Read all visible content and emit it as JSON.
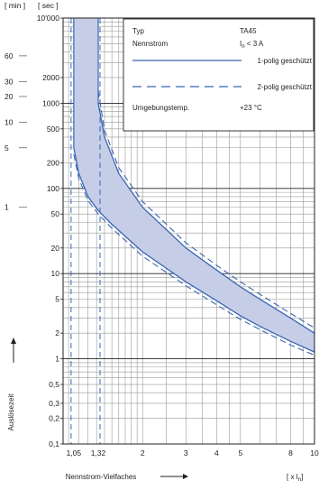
{
  "chart_data": {
    "type": "line",
    "x_scale": "log",
    "y_scale": "log",
    "xlim": [
      0.95,
      10
    ],
    "ylim": [
      0.1,
      10000
    ],
    "y_unit_min_label": "[ min ]",
    "y_unit_sec_label": "[ sec ]",
    "ylabel": "Auslösezeit",
    "xlabel": "Nennstrom-Vielfaches",
    "x_unit_label": "[ x I",
    "x_unit_sub": "n",
    "x_unit_close": "]",
    "x_ticks": [
      {
        "v": 1.05,
        "label": "1,05"
      },
      {
        "v": 1.32,
        "label": "1,32"
      },
      {
        "v": 2,
        "label": "2"
      },
      {
        "v": 3,
        "label": "3"
      },
      {
        "v": 4,
        "label": "4"
      },
      {
        "v": 5,
        "label": "5"
      },
      {
        "v": 8,
        "label": "8"
      },
      {
        "v": 10,
        "label": "10"
      }
    ],
    "y_sec_ticks": [
      {
        "v": 10000,
        "label": "10'000"
      },
      {
        "v": 2000,
        "label": "2000"
      },
      {
        "v": 1000,
        "label": "1000"
      },
      {
        "v": 500,
        "label": "500"
      },
      {
        "v": 200,
        "label": "200"
      },
      {
        "v": 100,
        "label": "100"
      },
      {
        "v": 50,
        "label": "50"
      },
      {
        "v": 20,
        "label": "20"
      },
      {
        "v": 10,
        "label": "10"
      },
      {
        "v": 5,
        "label": "5"
      },
      {
        "v": 2,
        "label": "2"
      },
      {
        "v": 1,
        "label": "1"
      },
      {
        "v": 0.5,
        "label": "0,5"
      },
      {
        "v": 0.3,
        "label": "0,3"
      },
      {
        "v": 0.2,
        "label": "0,2"
      },
      {
        "v": 0.1,
        "label": "0,1"
      }
    ],
    "y_min_ticks": [
      {
        "v": 3600,
        "label": "60"
      },
      {
        "v": 1800,
        "label": "30"
      },
      {
        "v": 1200,
        "label": "20"
      },
      {
        "v": 600,
        "label": "10"
      },
      {
        "v": 300,
        "label": "5"
      },
      {
        "v": 60,
        "label": "1"
      }
    ],
    "legend": {
      "placement": "top-right",
      "rows": [
        {
          "key": "Typ",
          "value": "TA45"
        },
        {
          "key": "Nennstrom",
          "value_prefix": "I",
          "value_sub": "n",
          "value_suffix": " < 3 A"
        },
        {
          "line": "solid",
          "value": "1-polig geschützt"
        },
        {
          "line": "dashed",
          "value": "2-polig geschützt"
        },
        {
          "key": "Umgebungstemp.",
          "value": "+23 °C"
        }
      ]
    },
    "band_fill": "#c6cde6",
    "curve_color": "#3a66b2",
    "series": [
      {
        "name": "1-polig geschützt",
        "style": "solid",
        "lower": {
          "x": [
            1.05,
            1.1,
            1.2,
            1.32,
            1.5,
            2,
            3,
            4,
            5,
            6,
            8,
            10
          ],
          "y": [
            300,
            150,
            80,
            55,
            38,
            18,
            8,
            4.8,
            3.2,
            2.4,
            1.6,
            1.2
          ]
        },
        "upper": {
          "x": [
            1.32,
            1.4,
            1.6,
            2,
            3,
            4,
            5,
            6,
            8,
            10
          ],
          "y": [
            1000,
            400,
            150,
            60,
            20,
            11,
            7,
            5,
            3,
            2
          ]
        }
      },
      {
        "name": "2-polig geschützt",
        "style": "dashed",
        "lower": {
          "x": [
            1.05,
            1.1,
            1.2,
            1.32,
            1.5,
            2,
            3,
            4,
            5,
            6,
            8,
            10
          ],
          "y": [
            250,
            130,
            72,
            50,
            34,
            16,
            7.2,
            4.3,
            2.9,
            2.2,
            1.45,
            1.1
          ]
        },
        "upper": {
          "x": [
            1.32,
            1.4,
            1.6,
            2,
            3,
            4,
            5,
            6,
            8,
            10
          ],
          "y": [
            1400,
            480,
            175,
            70,
            23,
            12.5,
            8,
            5.7,
            3.4,
            2.3
          ]
        }
      }
    ]
  }
}
